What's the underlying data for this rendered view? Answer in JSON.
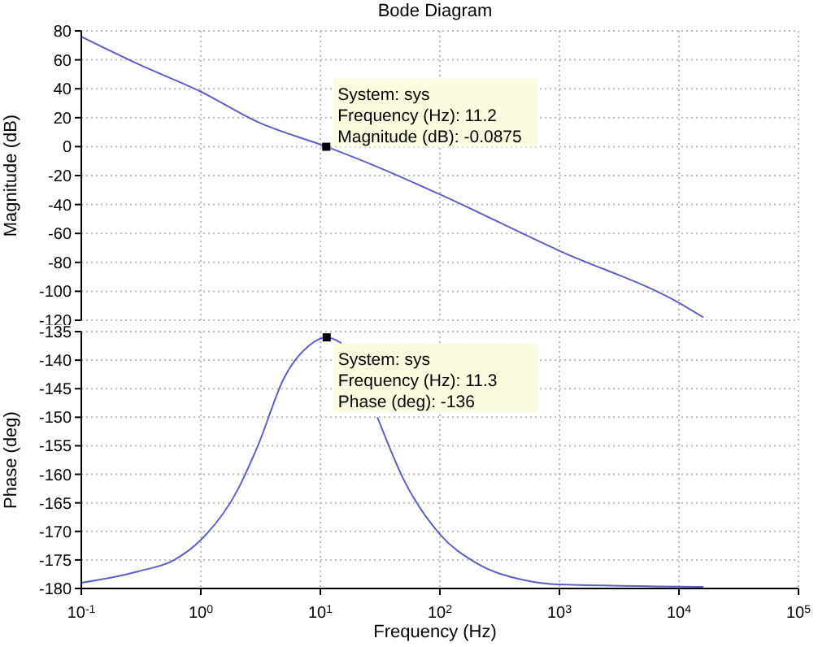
{
  "chart_data": [
    {
      "type": "line",
      "title": "Bode Diagram",
      "ylabel": "Magnitude (dB)",
      "log": "x",
      "grid": true,
      "tick_labels": "y",
      "x": [
        0.1,
        0.3,
        1,
        3,
        11.2,
        30,
        100,
        1000,
        10000,
        16000
      ],
      "series": [
        {
          "color": "#5b5fc7",
          "values": [
            76,
            57,
            38,
            17,
            0,
            -14,
            -33,
            -72,
            -108,
            -118
          ]
        }
      ],
      "xlim": [
        0.1,
        100000
      ],
      "xticks": [
        {
          "value": 0.1,
          "label": null
        },
        {
          "value": 1,
          "label": null
        },
        {
          "value": 10,
          "label": null
        },
        {
          "value": 100,
          "label": null
        },
        {
          "value": 1000,
          "label": null
        },
        {
          "value": 10000,
          "label": null
        },
        {
          "value": 100000,
          "label": null
        }
      ],
      "ylim": [
        -120,
        80
      ],
      "yticks": [
        -120,
        -100,
        -80,
        -60,
        -40,
        -20,
        0,
        20,
        40,
        60,
        80
      ],
      "annotations": [
        {
          "text": "System: sys\nFrequency (Hz): 11.2\nMagnitude (dB): -0.0875",
          "x": 11.2,
          "y": -0.0875
        }
      ]
    },
    {
      "type": "line",
      "xlabel": "Frequency  (Hz)",
      "ylabel": "Phase (deg)",
      "log": "x",
      "grid": true,
      "x": [
        0.1,
        0.3,
        0.6,
        1,
        2,
        3,
        5,
        8,
        11.3,
        15,
        20,
        30,
        50,
        100,
        200,
        500,
        1000,
        16000
      ],
      "series": [
        {
          "color": "#5b5fc7",
          "values": [
            -179,
            -177,
            -175,
            -171.5,
            -163,
            -155,
            -143,
            -137.5,
            -136,
            -137,
            null,
            -150,
            -161,
            -170.5,
            -175.5,
            -178.5,
            -179.3,
            -179.7
          ]
        }
      ],
      "xlim": [
        0.1,
        100000
      ],
      "xticks": [
        {
          "value": 0.1,
          "label": "10$^{-1}$"
        },
        {
          "value": 1,
          "label": "10$^{0}$"
        },
        {
          "value": 10,
          "label": "10$^{1}$"
        },
        {
          "value": 100,
          "label": "10$^{2}$"
        },
        {
          "value": 1000,
          "label": "10$^{3}$"
        },
        {
          "value": 10000,
          "label": "10$^{4}$"
        },
        {
          "value": 100000,
          "label": "10$^{5}$"
        }
      ],
      "ylim": [
        -180,
        -135
      ],
      "yticks": [
        -180,
        -175,
        -170,
        -165,
        -160,
        -155,
        -150,
        -145,
        -140,
        -135
      ],
      "annotations": [
        {
          "text": "System: sys\nFrequency (Hz): 11.3\nPhase (deg): -136",
          "x": 11.3,
          "y": -136
        }
      ]
    }
  ]
}
